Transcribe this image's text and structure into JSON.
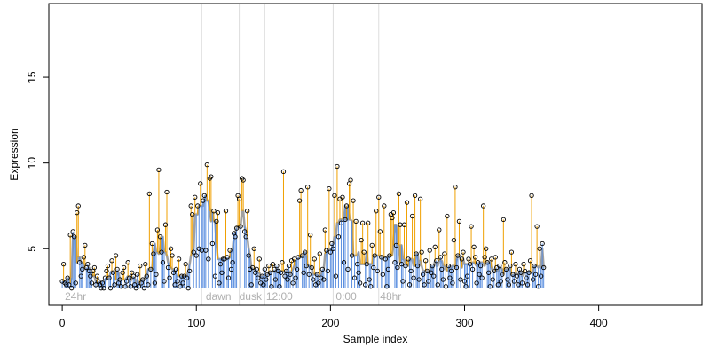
{
  "chart_data": {
    "type": "scatter",
    "title": "",
    "xlabel": "Sample index",
    "ylabel": "Expression",
    "xlim": [
      -10,
      477
    ],
    "ylim": [
      1.7,
      19.3
    ],
    "x_ticks": [
      0,
      100,
      200,
      300,
      400
    ],
    "y_ticks": [
      5,
      10,
      15
    ],
    "grid": false,
    "legend": "none",
    "baseline": 2.7,
    "colors": {
      "above_trend": "#f0a000",
      "below_trend": "#5b8fe0",
      "trend": "#a0a0a0",
      "annotation": "#b0b0b0",
      "vline": "#dddddd",
      "points": "#000000"
    },
    "annotations": [
      {
        "label": "24hr",
        "x": 2
      },
      {
        "label": "dawn",
        "x": 107
      },
      {
        "label": "dusk",
        "x": 132
      },
      {
        "label": "12:00",
        "x": 152
      },
      {
        "label": "0:00",
        "x": 204
      },
      {
        "label": "48hr",
        "x": 237
      }
    ],
    "vertical_lines": [
      104,
      132,
      151,
      202,
      236
    ],
    "series": [
      {
        "values": [
          3.1,
          4.1,
          3.0,
          2.9,
          3.3,
          2.9,
          5.8,
          2.7,
          6.0,
          5.7,
          3.0,
          7.1,
          7.5,
          4.2,
          3.4,
          3.8,
          4.5,
          5.2,
          3.9,
          4.1,
          3.7,
          3.4,
          3.0,
          3.7,
          3.9,
          2.9,
          3.4,
          3.1,
          2.9,
          2.7,
          3.0,
          2.7,
          3.3,
          3.7,
          4.0,
          3.3,
          2.7,
          4.3,
          3.6,
          2.9,
          4.6,
          3.8,
          3.0,
          3.2,
          2.8,
          3.6,
          3.9,
          2.8,
          3.1,
          4.2,
          3.3,
          2.8,
          3.6,
          3.4,
          2.9,
          2.7,
          3.5,
          2.8,
          4.0,
          3.0,
          3.2,
          2.7,
          4.1,
          3.4,
          2.9,
          8.2,
          3.8,
          5.3,
          4.7,
          3.0,
          3.5,
          6.1,
          9.6,
          5.7,
          4.8,
          4.2,
          3.1,
          6.4,
          8.3,
          3.9,
          3.3,
          5.0,
          4.6,
          3.6,
          2.9,
          3.8,
          3.1,
          4.4,
          2.8,
          3.4,
          3.0,
          3.4,
          4.1,
          3.3,
          2.7,
          3.7,
          7.5,
          7.0,
          4.8,
          8.0,
          4.6,
          7.5,
          5.0,
          8.8,
          4.9,
          7.8,
          8.1,
          4.9,
          9.9,
          4.4,
          9.1,
          9.2,
          5.3,
          7.2,
          3.4,
          6.6,
          7.1,
          3.0,
          4.1,
          3.6,
          4.4,
          4.4,
          7.2,
          4.5,
          3.3,
          4.9,
          3.8,
          4.2,
          5.9,
          5.7,
          6.2,
          8.1,
          7.9,
          6.3,
          9.1,
          9.0,
          6.0,
          5.7,
          7.2,
          4.6,
          3.8,
          2.9,
          3.9,
          5.0,
          3.6,
          3.8,
          3.3,
          4.4,
          3.0,
          3.4,
          2.9,
          3.8,
          3.2,
          3.5,
          4.0,
          3.6,
          2.8,
          4.1,
          3.8,
          3.2,
          4.0,
          3.7,
          2.8,
          3.6,
          4.2,
          9.5,
          3.4,
          3.7,
          3.2,
          4.0,
          3.5,
          4.3,
          3.0,
          4.4,
          3.3,
          3.8,
          4.5,
          7.8,
          8.4,
          4.6,
          3.6,
          4.8,
          4.0,
          8.6,
          3.5,
          5.8,
          3.9,
          3.2,
          4.4,
          2.9,
          3.5,
          3.0,
          4.7,
          3.3,
          3.8,
          3.2,
          6.1,
          4.9,
          3.7,
          8.5,
          4.8,
          5.3,
          5.0,
          8.1,
          3.4,
          9.8,
          5.7,
          7.9,
          6.5,
          8.0,
          4.2,
          6.7,
          7.5,
          3.8,
          8.8,
          9.0,
          4.6,
          7.8,
          3.3,
          6.6,
          4.1,
          3.6,
          3.0,
          5.5,
          6.5,
          4.8,
          2.9,
          4.1,
          6.5,
          3.2,
          2.8,
          5.2,
          3.9,
          4.6,
          7.2,
          3.7,
          8.0,
          6.0,
          4.5,
          3.5,
          7.5,
          4.4,
          2.8,
          3.8,
          4.6,
          7.0,
          6.8,
          7.1,
          4.2,
          5.2,
          3.9,
          8.2,
          6.4,
          4.1,
          3.1,
          6.4,
          4.0,
          7.7,
          4.4,
          2.9,
          3.7,
          6.9,
          3.3,
          8.1,
          4.7,
          4.0,
          3.2,
          7.9,
          4.8,
          3.5,
          2.9,
          4.3,
          3.7,
          3.1,
          4.9,
          3.6,
          4.0,
          3.4,
          5.1,
          4.3,
          2.9,
          6.1,
          4.5,
          3.8,
          3.2,
          4.7,
          2.8,
          6.9,
          4.0,
          3.3,
          3.7,
          3.0,
          5.5,
          8.6,
          3.9,
          4.6,
          6.6,
          3.2,
          4.4,
          4.8,
          3.1,
          2.8,
          3.4,
          4.4,
          4.1,
          6.3,
          3.8,
          5.1,
          4.5,
          3.0,
          4.2,
          3.5,
          4.0,
          3.3,
          7.5,
          4.5,
          5.0,
          4.2,
          3.6,
          2.8,
          4.4,
          3.2,
          3.7,
          4.5,
          3.9,
          2.9,
          4.0,
          3.1,
          3.5,
          6.7,
          4.2,
          3.8,
          3.2,
          2.9,
          4.0,
          4.8,
          3.5,
          3.1,
          4.1,
          3.4,
          2.9,
          3.8,
          3.6,
          3.0,
          4.1,
          3.7,
          3.3,
          2.9,
          3.6,
          4.3,
          8.1,
          3.2,
          4.0,
          3.5,
          6.3,
          2.8,
          5.0,
          3.4,
          5.3,
          3.9
        ]
      }
    ]
  }
}
